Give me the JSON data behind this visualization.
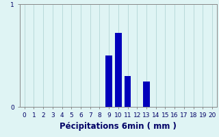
{
  "categories": [
    0,
    1,
    2,
    3,
    4,
    5,
    6,
    7,
    8,
    9,
    10,
    11,
    12,
    13,
    14,
    15,
    16,
    17,
    18,
    19,
    20
  ],
  "values": [
    0,
    0,
    0,
    0,
    0,
    0,
    0,
    0,
    0,
    0.5,
    0.72,
    0.3,
    0,
    0.25,
    0,
    0,
    0,
    0,
    0,
    0,
    0
  ],
  "bar_color": "#0000bb",
  "bg_color": "#dff4f4",
  "grid_color": "#b8dada",
  "ylim": [
    0,
    1
  ],
  "xlim": [
    -0.5,
    20.5
  ],
  "yticks": [
    0,
    1
  ],
  "xticks": [
    0,
    1,
    2,
    3,
    4,
    5,
    6,
    7,
    8,
    9,
    10,
    11,
    12,
    13,
    14,
    15,
    16,
    17,
    18,
    19,
    20
  ],
  "xlabel_text": "Pécipitations 6min ( mm )",
  "tick_fontsize": 6.5,
  "xlabel_fontsize": 8.5,
  "bar_width": 0.7
}
